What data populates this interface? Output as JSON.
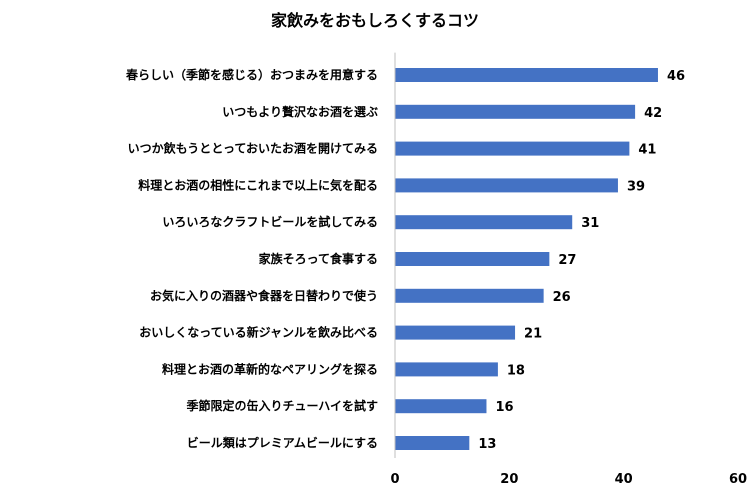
{
  "chart_data": {
    "type": "bar",
    "orientation": "horizontal",
    "title": "家飲みをおもしろくするコツ",
    "categories": [
      "春らしい（季節を感じる）おつまみを用意する",
      "いつもより贅沢なお酒を選ぶ",
      "いつか飲もうととっておいたお酒を開けてみる",
      "料理とお酒の相性にこれまで以上に気を配る",
      "いろいろなクラフトビールを試してみる",
      "家族そろって食事する",
      "お気に入りの酒器や食器を日替わりで使う",
      "おいしくなっている新ジャンルを飲み比べる",
      "料理とお酒の革新的なペアリングを探る",
      "季節限定の缶入りチューハイを試す",
      "ビール類はプレミアムビールにする"
    ],
    "values": [
      46,
      42,
      41,
      39,
      31,
      27,
      26,
      21,
      18,
      16,
      13
    ],
    "xlim": [
      0,
      60
    ],
    "xticks": [
      0,
      20,
      40,
      60
    ],
    "bar_color": "#4472c4",
    "data_labels": true,
    "grid": false,
    "legend": "none"
  }
}
